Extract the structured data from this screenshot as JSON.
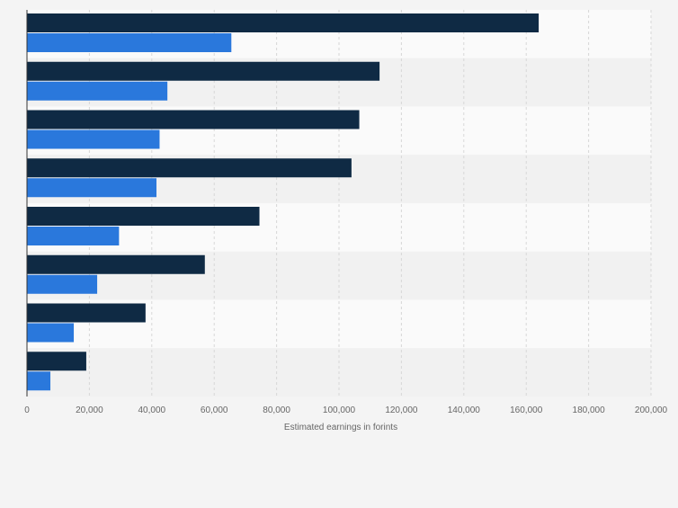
{
  "chart_data": {
    "type": "bar",
    "orientation": "horizontal",
    "categories": [
      "",
      "",
      "",
      "",
      "",
      "",
      "",
      ""
    ],
    "series": [
      {
        "values": [
          164000,
          113000,
          106500,
          104000,
          74500,
          57000,
          38000,
          19000
        ]
      },
      {
        "values": [
          65500,
          45000,
          42500,
          41500,
          29500,
          22500,
          15000,
          7500
        ]
      }
    ],
    "title": "",
    "xlabel": "Estimated earnings in forints",
    "ylabel": "",
    "xlim": [
      0,
      200000
    ],
    "x_ticks": [
      0,
      20000,
      40000,
      60000,
      80000,
      100000,
      120000,
      140000,
      160000,
      180000,
      200000
    ],
    "x_tick_labels": [
      "0",
      "20,000",
      "40,000",
      "60,000",
      "80,000",
      "100,000",
      "120,000",
      "140,000",
      "160,000",
      "180,000",
      "200,000"
    ],
    "grid": true,
    "legend": "none",
    "colors": {
      "series_dark": "#0f2a44",
      "series_light": "#2a78dc",
      "band_alt": "#f1f1f1",
      "band": "#fafafa",
      "grid": "#d7d7d7",
      "axis": "#333333",
      "tick_text": "#666666",
      "background": "#f4f4f4"
    }
  }
}
